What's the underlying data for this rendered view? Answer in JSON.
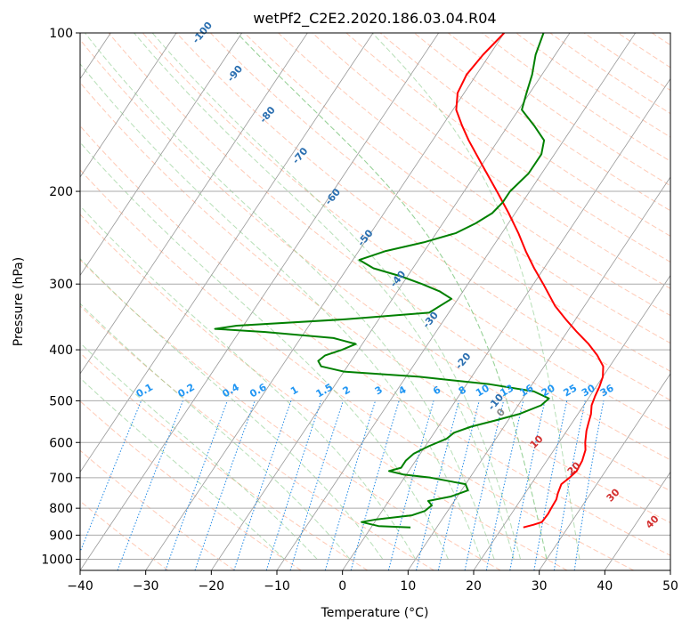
{
  "chart_data": {
    "type": "line",
    "chart_kind": "skew-T log-P diagram",
    "title": "wetPf2_C2E2.2020.186.03.04.R04",
    "xlabel": "Temperature (°C)",
    "ylabel": "Pressure (hPa)",
    "xlim": [
      -40,
      50
    ],
    "ylim": [
      1050,
      100
    ],
    "x_ticks": [
      -40,
      -30,
      -20,
      -10,
      0,
      10,
      20,
      30,
      40,
      50
    ],
    "y_ticks": [
      100,
      200,
      300,
      400,
      500,
      600,
      700,
      800,
      900,
      1000
    ],
    "colors": {
      "temperature": "#ff0000",
      "dewpoint": "#008000",
      "isotherm": "#999999",
      "isobar": "#aaaaaa",
      "dry_adiabat": "#ff9e7a",
      "moist_adiabat": "#7cc47c",
      "mixing_ratio": "#1e88e5",
      "dry_label": "#2b6fb0",
      "mixing_label": "#2196f3",
      "moist_label": "#d32f2f"
    },
    "series": [
      {
        "name": "Temperature",
        "pressure": [
          870,
          860,
          850,
          820,
          800,
          770,
          750,
          720,
          700,
          680,
          650,
          620,
          600,
          570,
          550,
          530,
          510,
          490,
          470,
          450,
          430,
          410,
          390,
          370,
          350,
          330,
          300,
          280,
          260,
          240,
          220,
          200,
          180,
          160,
          150,
          140,
          130,
          120,
          110,
          100
        ],
        "values": [
          23.2,
          24.5,
          25.5,
          25.6,
          25.5,
          25.4,
          25.0,
          24.6,
          25.2,
          25.6,
          25.4,
          24.8,
          24.0,
          23.0,
          22.5,
          22.0,
          21.2,
          20.8,
          20.5,
          20.0,
          19.0,
          17.0,
          14.5,
          11.5,
          8.5,
          5.5,
          1.5,
          -1.5,
          -4.5,
          -7.5,
          -11.0,
          -15.0,
          -19.5,
          -24.5,
          -27.0,
          -29.5,
          -31.0,
          -31.5,
          -31.0,
          -30.0
        ]
      },
      {
        "name": "Dewpoint",
        "pressure": [
          870,
          865,
          850,
          840,
          825,
          810,
          790,
          775,
          760,
          740,
          720,
          700,
          690,
          680,
          670,
          650,
          630,
          610,
          590,
          575,
          560,
          545,
          530,
          510,
          495,
          480,
          465,
          450,
          440,
          430,
          420,
          410,
          400,
          390,
          380,
          370,
          365,
          360,
          350,
          340,
          320,
          310,
          300,
          290,
          280,
          270,
          260,
          250,
          240,
          230,
          220,
          210,
          200,
          185,
          170,
          160,
          150,
          140,
          130,
          120,
          110,
          100
        ],
        "values": [
          6.0,
          1.0,
          -2.0,
          0.0,
          5.0,
          6.5,
          7.0,
          6.0,
          9.0,
          11.0,
          10.0,
          4.0,
          -0.5,
          -3.0,
          -1.5,
          -1.5,
          -1.0,
          0.5,
          2.5,
          3.0,
          5.0,
          8.0,
          11.0,
          13.5,
          14.0,
          11.0,
          3.5,
          -8.0,
          -20.0,
          -24.0,
          -25.0,
          -24.5,
          -22.5,
          -21.0,
          -25.0,
          -36.0,
          -44.0,
          -41.0,
          -25.0,
          -13.0,
          -11.0,
          -13.5,
          -17.0,
          -21.0,
          -26.0,
          -29.0,
          -26.0,
          -21.0,
          -17.0,
          -15.0,
          -13.5,
          -13.0,
          -13.0,
          -12.0,
          -12.0,
          -13.0,
          -16.0,
          -19.5,
          -20.5,
          -21.5,
          -23.0,
          -24.0
        ]
      }
    ],
    "isotherms": [
      -140,
      -130,
      -120,
      -110,
      -100,
      -90,
      -80,
      -70,
      -60,
      -50,
      -40,
      -30,
      -20,
      -10,
      0,
      10,
      20,
      30,
      40,
      50
    ],
    "dry_adiabats": [
      -30,
      -20,
      -10,
      0,
      10,
      20,
      30,
      40,
      50,
      60,
      70,
      80,
      90,
      100,
      110,
      120,
      130,
      140,
      150,
      160,
      170,
      180,
      190,
      200,
      210,
      220,
      230,
      240,
      250,
      260,
      270,
      280,
      290,
      300
    ],
    "dry_adiabat_labels": [
      {
        "text": "-100",
        "t": -100
      },
      {
        "text": "-90",
        "t": -90
      },
      {
        "text": "-80",
        "t": -80
      },
      {
        "text": "-70",
        "t": -70
      },
      {
        "text": "-60",
        "t": -60
      },
      {
        "text": "-50",
        "t": -50
      },
      {
        "text": "-40",
        "t": -40
      },
      {
        "text": "-30",
        "t": -30
      },
      {
        "text": "-20",
        "t": -20
      },
      {
        "text": "-10",
        "t": -10
      },
      {
        "text": "0",
        "t": 0
      }
    ],
    "moist_adiabats": [
      -10,
      -5,
      0,
      5,
      10,
      15,
      20,
      25,
      30,
      35
    ],
    "moist_adiabat_labels": [
      {
        "text": "10",
        "t": 10
      },
      {
        "text": "20",
        "t": 20
      },
      {
        "text": "30",
        "t": 30
      },
      {
        "text": "40",
        "t": 40
      }
    ],
    "mixing_ratios": [
      {
        "text": "0.1",
        "w": 0.1
      },
      {
        "text": "0.2",
        "w": 0.2
      },
      {
        "text": "0.4",
        "w": 0.4
      },
      {
        "text": "0.6",
        "w": 0.6
      },
      {
        "text": "1",
        "w": 1
      },
      {
        "text": "1.5",
        "w": 1.5
      },
      {
        "text": "2",
        "w": 2
      },
      {
        "text": "3",
        "w": 3
      },
      {
        "text": "4",
        "w": 4
      },
      {
        "text": "6",
        "w": 6
      },
      {
        "text": "8",
        "w": 8
      },
      {
        "text": "10",
        "w": 10
      },
      {
        "text": "13",
        "w": 13
      },
      {
        "text": "16",
        "w": 16
      },
      {
        "text": "20",
        "w": 20
      },
      {
        "text": "25",
        "w": 25
      },
      {
        "text": "30",
        "w": 30
      },
      {
        "text": "36",
        "w": 36
      }
    ],
    "moist_extra_line_temps": [
      22,
      26,
      30
    ]
  }
}
